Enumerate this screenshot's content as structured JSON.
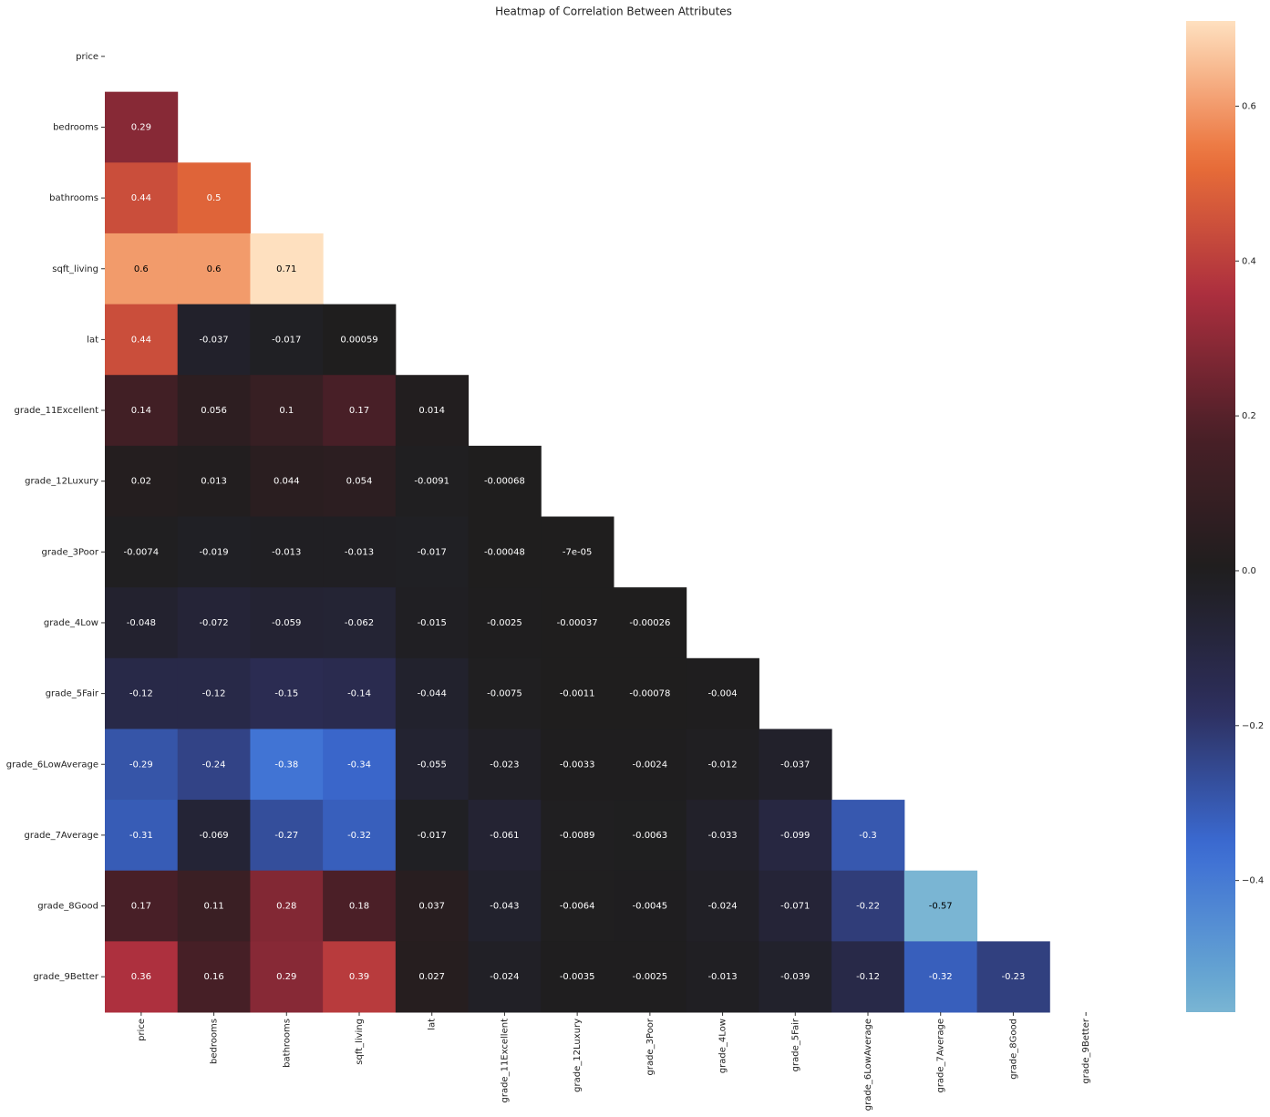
{
  "chart_data": {
    "type": "heatmap",
    "title": "Heatmap of Correlation Between Attributes",
    "x": [
      "price",
      "bedrooms",
      "bathrooms",
      "sqft_living",
      "lat",
      "grade_11Excellent",
      "grade_12Luxury",
      "grade_3Poor",
      "grade_4Low",
      "grade_5Fair",
      "grade_6LowAverage",
      "grade_7Average",
      "grade_8Good",
      "grade_9Better"
    ],
    "y": [
      "price",
      "bedrooms",
      "bathrooms",
      "sqft_living",
      "lat",
      "grade_11Excellent",
      "grade_12Luxury",
      "grade_3Poor",
      "grade_4Low",
      "grade_5Fair",
      "grade_6LowAverage",
      "grade_7Average",
      "grade_8Good",
      "grade_9Better"
    ],
    "values": [
      [
        null,
        null,
        null,
        null,
        null,
        null,
        null,
        null,
        null,
        null,
        null,
        null,
        null,
        null
      ],
      [
        0.29,
        null,
        null,
        null,
        null,
        null,
        null,
        null,
        null,
        null,
        null,
        null,
        null,
        null
      ],
      [
        0.44,
        0.5,
        null,
        null,
        null,
        null,
        null,
        null,
        null,
        null,
        null,
        null,
        null,
        null
      ],
      [
        0.6,
        0.6,
        0.71,
        null,
        null,
        null,
        null,
        null,
        null,
        null,
        null,
        null,
        null,
        null
      ],
      [
        0.44,
        -0.037,
        -0.017,
        0.00059,
        null,
        null,
        null,
        null,
        null,
        null,
        null,
        null,
        null,
        null
      ],
      [
        0.14,
        0.056,
        0.1,
        0.17,
        0.014,
        null,
        null,
        null,
        null,
        null,
        null,
        null,
        null,
        null
      ],
      [
        0.02,
        0.013,
        0.044,
        0.054,
        -0.0091,
        -0.00068,
        null,
        null,
        null,
        null,
        null,
        null,
        null,
        null
      ],
      [
        -0.0074,
        -0.019,
        -0.013,
        -0.013,
        -0.017,
        -0.00048,
        -7e-05,
        null,
        null,
        null,
        null,
        null,
        null,
        null
      ],
      [
        -0.048,
        -0.072,
        -0.059,
        -0.062,
        -0.015,
        -0.0025,
        -0.00037,
        -0.00026,
        null,
        null,
        null,
        null,
        null,
        null
      ],
      [
        -0.12,
        -0.12,
        -0.15,
        -0.14,
        -0.044,
        -0.0075,
        -0.0011,
        -0.00078,
        -0.004,
        null,
        null,
        null,
        null,
        null
      ],
      [
        -0.29,
        -0.24,
        -0.38,
        -0.34,
        -0.055,
        -0.023,
        -0.0033,
        -0.0024,
        -0.012,
        -0.037,
        null,
        null,
        null,
        null
      ],
      [
        -0.31,
        -0.069,
        -0.27,
        -0.32,
        -0.017,
        -0.061,
        -0.0089,
        -0.0063,
        -0.033,
        -0.099,
        -0.3,
        null,
        null,
        null
      ],
      [
        0.17,
        0.11,
        0.28,
        0.18,
        0.037,
        -0.043,
        -0.0064,
        -0.0045,
        -0.024,
        -0.071,
        -0.22,
        -0.57,
        null,
        null
      ],
      [
        0.36,
        0.16,
        0.29,
        0.39,
        0.027,
        -0.024,
        -0.0035,
        -0.0025,
        -0.013,
        -0.039,
        -0.12,
        -0.32,
        -0.23,
        null
      ]
    ],
    "value_labels": [
      [
        null,
        null,
        null,
        null,
        null,
        null,
        null,
        null,
        null,
        null,
        null,
        null,
        null,
        null
      ],
      [
        null,
        null,
        null,
        null,
        null,
        null,
        null,
        null,
        null,
        null,
        null,
        null,
        null,
        null
      ],
      [
        null,
        null,
        null,
        null,
        null,
        null,
        null,
        null,
        null,
        null,
        null,
        null,
        null,
        null
      ],
      [
        null,
        null,
        null,
        null,
        null,
        null,
        null,
        null,
        null,
        null,
        null,
        null,
        null,
        null
      ],
      [
        null,
        null,
        null,
        null,
        null,
        null,
        null,
        null,
        null,
        null,
        null,
        null,
        null,
        null
      ],
      [
        null,
        null,
        null,
        null,
        null,
        null,
        null,
        null,
        null,
        null,
        null,
        null,
        null,
        null
      ],
      [
        null,
        null,
        null,
        null,
        null,
        null,
        null,
        null,
        null,
        null,
        null,
        null,
        null,
        null
      ],
      [
        null,
        null,
        null,
        null,
        null,
        null,
        "-7e-05",
        null,
        null,
        null,
        null,
        null,
        null,
        null
      ],
      [
        null,
        null,
        null,
        null,
        null,
        null,
        null,
        null,
        null,
        null,
        null,
        null,
        null,
        null
      ],
      [
        null,
        null,
        null,
        null,
        null,
        null,
        null,
        null,
        null,
        null,
        null,
        null,
        null,
        null
      ],
      [
        null,
        null,
        null,
        null,
        null,
        null,
        null,
        null,
        null,
        null,
        null,
        null,
        null,
        null
      ],
      [
        null,
        null,
        null,
        null,
        null,
        null,
        null,
        null,
        null,
        null,
        null,
        null,
        null,
        null
      ],
      [
        null,
        null,
        null,
        null,
        null,
        null,
        null,
        null,
        null,
        null,
        null,
        null,
        null,
        null
      ],
      [
        null,
        null,
        null,
        null,
        null,
        null,
        null,
        null,
        null,
        null,
        null,
        null,
        null,
        null
      ]
    ],
    "zlim": [
      -0.57,
      0.71
    ],
    "center": 0,
    "zticks": [
      {
        "value": -0.4,
        "label": "−0.4"
      },
      {
        "value": -0.2,
        "label": "−0.2"
      },
      {
        "value": 0,
        "label": "0.0"
      },
      0.2,
      0.4,
      0.6
    ],
    "colorscale": [
      "#bfe5d9",
      "#68a8d2",
      "#3b6bd4",
      "#2d2e5c",
      "#1f1e1e",
      "#4a1f27",
      "#ab2e3e",
      "#eb7038",
      "#fee0bf"
    ]
  }
}
